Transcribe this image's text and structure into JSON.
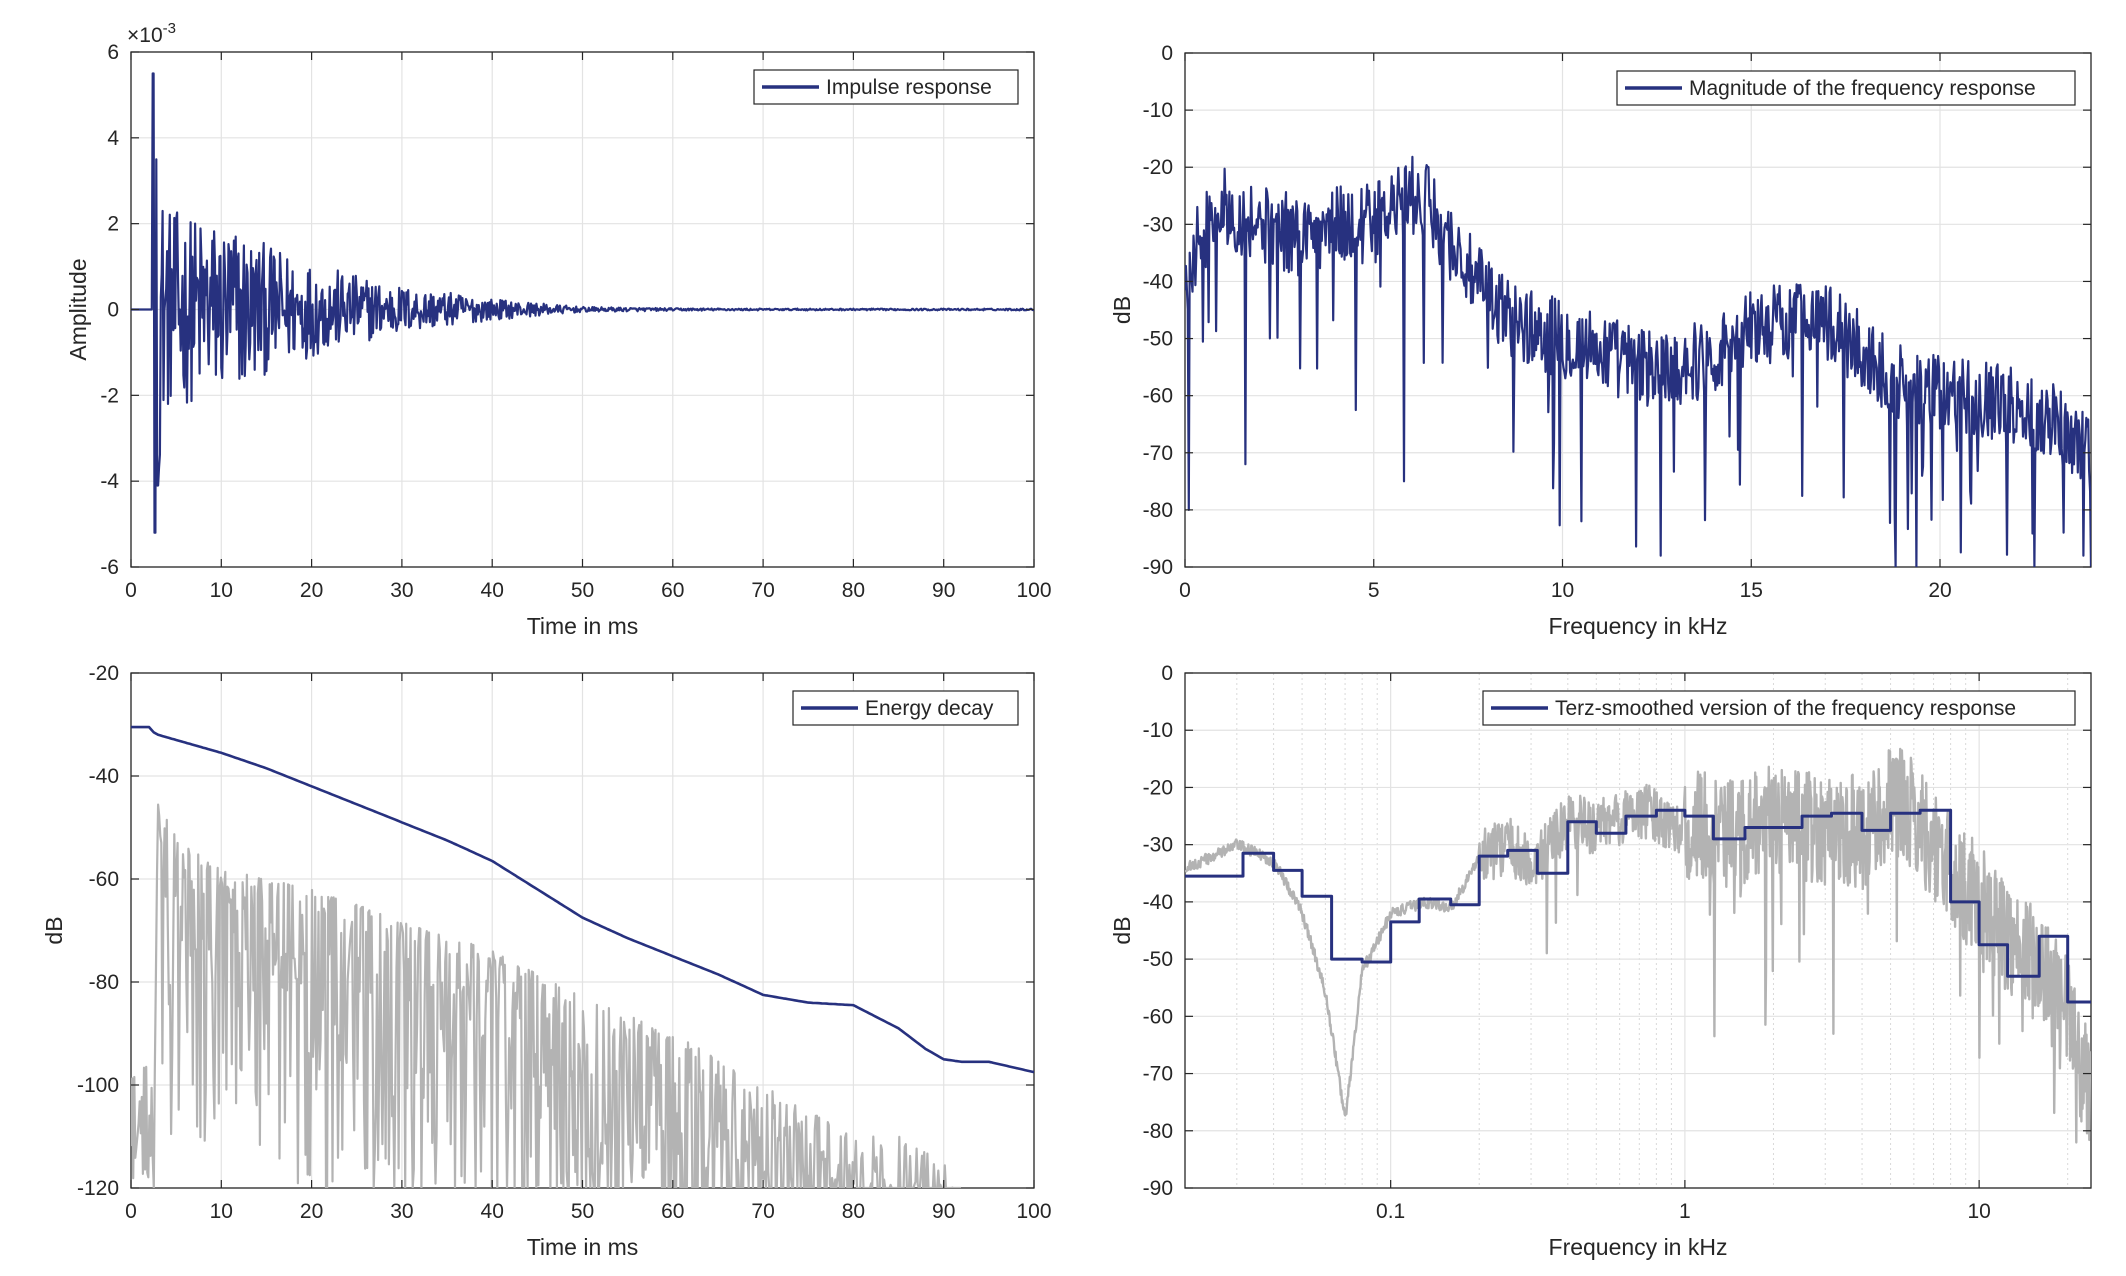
{
  "chart_data": [
    {
      "type": "line",
      "panel": "top-left",
      "xlabel": "Time in ms",
      "ylabel": "Amplitude",
      "xlim": [
        0,
        100
      ],
      "ylim": [
        -6,
        6
      ],
      "xticks": [
        0,
        10,
        20,
        30,
        40,
        50,
        60,
        70,
        80,
        90,
        100
      ],
      "yticks": [
        -6,
        -4,
        -2,
        0,
        2,
        4,
        6
      ],
      "y_exponent_label": "×10",
      "y_exponent_power": "-3",
      "xscale": "linear",
      "grid": true,
      "legend_position": "top-right",
      "series": [
        {
          "name": "Impulse response",
          "color": "#27317f",
          "description": "onset near 2.5 ms, peaks about +5.5e-3 and -5.2e-3, exponential decay to near zero by ~50 ms",
          "x": [
            0,
            2.4,
            2.6,
            2.8,
            3.0,
            3.2,
            3.5,
            4,
            5,
            6,
            8,
            10,
            12,
            15,
            20,
            25,
            30,
            35,
            40,
            45,
            50,
            60,
            70,
            80,
            90,
            100
          ],
          "envelope": [
            0,
            0,
            5.5,
            5.2,
            4.2,
            3.5,
            2.8,
            2.4,
            2.3,
            2.2,
            2.2,
            2.1,
            2.0,
            1.5,
            1.1,
            0.8,
            0.55,
            0.4,
            0.25,
            0.15,
            0.06,
            0.03,
            0.02,
            0.02,
            0.02,
            0.02
          ]
        }
      ]
    },
    {
      "type": "line",
      "panel": "top-right",
      "xlabel": "Frequency in kHz",
      "ylabel": "dB",
      "xlim": [
        0,
        24
      ],
      "ylim": [
        -90,
        0
      ],
      "xticks": [
        0,
        5,
        10,
        15,
        20
      ],
      "yticks": [
        0,
        -10,
        -20,
        -30,
        -40,
        -50,
        -60,
        -70,
        -80,
        -90
      ],
      "xscale": "linear",
      "grid": true,
      "legend_position": "top-right",
      "series": [
        {
          "name": "Magnitude of the frequency response",
          "color": "#27317f",
          "x": [
            0,
            0.5,
            1,
            2,
            3,
            4,
            5,
            6,
            6.5,
            7,
            7.5,
            8,
            9,
            10,
            11,
            12,
            13,
            14,
            15,
            16,
            16.5,
            17,
            18,
            19,
            20,
            21,
            22,
            23,
            24
          ],
          "y_mean": [
            -40,
            -30,
            -27,
            -30,
            -32,
            -30,
            -30,
            -25,
            -27,
            -33,
            -38,
            -43,
            -48,
            -50,
            -52,
            -55,
            -55,
            -53,
            -48,
            -47,
            -45,
            -47,
            -53,
            -58,
            -60,
            -60,
            -62,
            -64,
            -70
          ],
          "notches": [
            [
              0.1,
              -80
            ],
            [
              1.6,
              -72
            ],
            [
              5.8,
              -75
            ],
            [
              10.5,
              -82
            ],
            [
              12.6,
              -88
            ],
            [
              22.5,
              -90
            ],
            [
              23.8,
              -88
            ]
          ]
        }
      ]
    },
    {
      "type": "line",
      "panel": "bottom-left",
      "xlabel": "Time in ms",
      "ylabel": "dB",
      "xlim": [
        0,
        100
      ],
      "ylim": [
        -120,
        -20
      ],
      "xticks": [
        0,
        10,
        20,
        30,
        40,
        50,
        60,
        70,
        80,
        90,
        100
      ],
      "yticks": [
        -20,
        -40,
        -60,
        -80,
        -100,
        -120
      ],
      "xscale": "linear",
      "grid": true,
      "legend_position": "top-right",
      "series": [
        {
          "name": "Energy decay",
          "color": "#27317f",
          "x": [
            0,
            2,
            2.5,
            3,
            5,
            10,
            15,
            20,
            25,
            30,
            35,
            40,
            45,
            50,
            55,
            60,
            65,
            70,
            75,
            80,
            85,
            88,
            90,
            92,
            95,
            100
          ],
          "y": [
            -30.5,
            -30.5,
            -31.5,
            -32,
            -33,
            -35.5,
            -38.5,
            -42,
            -45.5,
            -49,
            -52.5,
            -56.5,
            -62,
            -67.5,
            -71.5,
            -75,
            -78.5,
            -82.5,
            -84,
            -84.5,
            -89,
            -93,
            -95,
            -95.5,
            -95.5,
            -97.5
          ]
        },
        {
          "name": "",
          "color": "#b3b3b3",
          "description": "squared impulse response in dB",
          "x": [
            0,
            2.5,
            3,
            5,
            10,
            20,
            30,
            40,
            50,
            60,
            70,
            75,
            80,
            85,
            90,
            92
          ],
          "envelope_top": [
            -93,
            -93,
            -45,
            -52,
            -58,
            -62,
            -68,
            -74,
            -83,
            -90,
            -100,
            -105,
            -110,
            -110,
            -115,
            -120
          ]
        }
      ]
    },
    {
      "type": "line",
      "panel": "bottom-right",
      "xlabel": "Frequency in kHz",
      "ylabel": "dB",
      "xlim": [
        0.02,
        24
      ],
      "ylim": [
        -90,
        0
      ],
      "xticks": [
        0.1,
        1,
        10
      ],
      "xticklabels": [
        "0.1",
        "1",
        "10"
      ],
      "yticks": [
        0,
        -10,
        -20,
        -30,
        -40,
        -50,
        -60,
        -70,
        -80,
        -90
      ],
      "xscale": "log",
      "grid": true,
      "legend_position": "top-right",
      "series": [
        {
          "name": "Terz-smoothed version of the frequency response",
          "color": "#27317f",
          "style": "step",
          "x": [
            0.02,
            0.0315,
            0.04,
            0.05,
            0.063,
            0.08,
            0.1,
            0.125,
            0.16,
            0.2,
            0.25,
            0.315,
            0.4,
            0.5,
            0.63,
            0.8,
            1.0,
            1.25,
            1.6,
            2.0,
            2.5,
            3.15,
            4.0,
            5.0,
            6.3,
            8.0,
            10.0,
            12.5,
            16.0,
            20.0,
            24.0
          ],
          "y": [
            -35.5,
            -31.5,
            -34.5,
            -39,
            -50,
            -50.5,
            -43.5,
            -39.5,
            -40.5,
            -32,
            -31,
            -35,
            -26,
            -28,
            -25,
            -24,
            -25,
            -29,
            -27,
            -27,
            -25,
            -24.5,
            -27.5,
            -24.5,
            -24,
            -40,
            -47.5,
            -53,
            -46,
            -57.5,
            -57.5
          ]
        },
        {
          "name": "",
          "color": "#b3b3b3",
          "description": "unsmoothed magnitude response on log frequency axis",
          "x": [
            0.02,
            0.03,
            0.04,
            0.05,
            0.06,
            0.07,
            0.08,
            0.1,
            0.13,
            0.16,
            0.2,
            0.25,
            0.3,
            0.4,
            0.5,
            0.7,
            1,
            1.5,
            2,
            3,
            4,
            5,
            6,
            7,
            8,
            10,
            12,
            15,
            20,
            24
          ],
          "y": [
            -34,
            -30,
            -33,
            -42,
            -56,
            -78,
            -52,
            -42,
            -40,
            -41,
            -32,
            -30,
            -34,
            -26,
            -27,
            -24,
            -27,
            -28,
            -26,
            -27,
            -28,
            -22,
            -25,
            -30,
            -35,
            -40,
            -45,
            -50,
            -60,
            -75
          ]
        }
      ]
    }
  ]
}
